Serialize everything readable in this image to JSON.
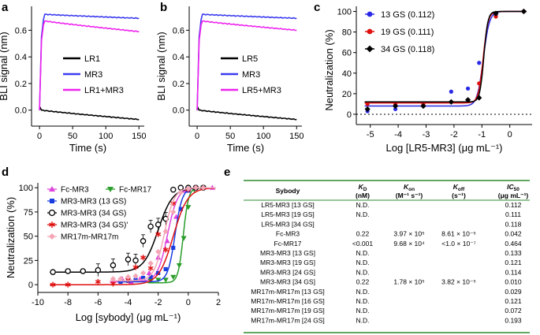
{
  "panels": {
    "a": "a",
    "b": "b",
    "c": "c",
    "d": "d",
    "e": "e"
  },
  "chart_data": [
    {
      "id": "a",
      "type": "line",
      "xlabel": "Time (s)",
      "ylabel": "BLI signal (nm)",
      "xlim": [
        -12,
        158
      ],
      "ylim": [
        -0.12,
        0.78
      ],
      "xticks": [
        "0",
        "50",
        "100",
        "150"
      ],
      "yticks": [
        "0.0",
        "0.2",
        "0.4",
        "0.6"
      ],
      "series": [
        {
          "name": "LR1",
          "color": "#000000",
          "x": [
            0,
            1,
            3,
            150
          ],
          "values": [
            0.0,
            0.02,
            0.0,
            -0.07
          ]
        },
        {
          "name": "MR3",
          "color": "#3b3bf0",
          "x": [
            0,
            3,
            6,
            8,
            150
          ],
          "values": [
            0.0,
            0.55,
            0.68,
            0.72,
            0.69
          ]
        },
        {
          "name": "LR1+MR3",
          "color": "#ee22ee",
          "x": [
            0,
            3,
            6,
            8,
            150
          ],
          "values": [
            0.0,
            0.52,
            0.64,
            0.67,
            0.59
          ]
        }
      ]
    },
    {
      "id": "b",
      "type": "line",
      "xlabel": "Time (s)",
      "ylabel": "BLI signal (nm)",
      "xlim": [
        -12,
        158
      ],
      "ylim": [
        -0.12,
        0.78
      ],
      "xticks": [
        "0",
        "50",
        "100",
        "150"
      ],
      "yticks": [
        "0.0",
        "0.2",
        "0.4",
        "0.6"
      ],
      "series": [
        {
          "name": "LR5",
          "color": "#000000",
          "x": [
            0,
            1,
            3,
            150
          ],
          "values": [
            0.0,
            0.02,
            0.0,
            -0.07
          ]
        },
        {
          "name": "MR3",
          "color": "#3b3bf0",
          "x": [
            0,
            3,
            6,
            8,
            150
          ],
          "values": [
            0.0,
            0.55,
            0.68,
            0.72,
            0.69
          ]
        },
        {
          "name": "LR5+MR3",
          "color": "#ee22ee",
          "x": [
            0,
            3,
            6,
            8,
            150
          ],
          "values": [
            0.0,
            0.52,
            0.64,
            0.67,
            0.6
          ]
        }
      ]
    },
    {
      "id": "c",
      "type": "scatter",
      "xlabel": "Log [LR5-MR3] (μg mL⁻¹)",
      "ylabel": "Neutralization (%)",
      "xlim": [
        -5.5,
        0.8
      ],
      "ylim": [
        -10,
        105
      ],
      "xticks": [
        "-5",
        "-4",
        "-3",
        "-2",
        "-1",
        "0"
      ],
      "yticks": [
        "0",
        "20",
        "40",
        "60",
        "80",
        "100"
      ],
      "baseline": 0,
      "series": [
        {
          "name": "13 GS (0.112)",
          "color": "#2a2ae6",
          "marker": "circle",
          "bottom": 8,
          "top": 100,
          "ic50_log": -0.95,
          "hill": 4,
          "x": [
            -5.1,
            -4.1,
            -3.1,
            -2.1,
            -1.5,
            -1.1,
            -0.5,
            0.5
          ],
          "values": [
            3,
            5,
            8,
            22,
            25,
            50,
            96,
            100
          ]
        },
        {
          "name": "19 GS (0.111)",
          "color": "#e01010",
          "marker": "circle",
          "bottom": 11,
          "top": 100,
          "ic50_log": -0.95,
          "hill": 5,
          "x": [
            -5.1,
            -4.1,
            -3.1,
            -2.1,
            -1.5,
            -1.1,
            -0.5,
            0.5
          ],
          "values": [
            10,
            10,
            10,
            12,
            14,
            30,
            95,
            100
          ]
        },
        {
          "name": "34 GS (0.118)",
          "color": "#000000",
          "marker": "diamond",
          "bottom": 12,
          "top": 100,
          "ic50_log": -0.93,
          "hill": 6,
          "x": [
            -5.1,
            -4.1,
            -3.1,
            -2.1,
            -1.5,
            -1.1,
            -0.5,
            0.5
          ],
          "values": [
            5,
            8,
            8,
            12,
            14,
            16,
            98,
            100
          ]
        }
      ]
    },
    {
      "id": "d",
      "type": "scatter",
      "xlabel": "Log [sybody] (μg mL⁻¹)",
      "ylabel": "Neutralization (%)",
      "xlim": [
        -10,
        2
      ],
      "ylim": [
        -8,
        105
      ],
      "xticks": [
        "-10",
        "-8",
        "-6",
        "-4",
        "-2",
        "0",
        "2"
      ],
      "yticks": [
        "0",
        "25",
        "50",
        "75",
        "100"
      ],
      "series": [
        {
          "name": "Fc-MR3",
          "color": "#dd44dd",
          "marker": "triangle",
          "bottom": 3,
          "top": 100,
          "ic50_log": -1.38,
          "hill": 1.3,
          "x": [
            -5,
            -4.4,
            -3.8,
            -3.2,
            -2.6,
            -2,
            -1.4,
            -0.8,
            -0.2,
            0.4,
            1,
            1.6
          ],
          "values": [
            4,
            6,
            3,
            6,
            12,
            28,
            45,
            70,
            97,
            99,
            100,
            100
          ]
        },
        {
          "name": "Fc-MR17",
          "color": "#2a9d2a",
          "marker": "triangle-down",
          "bottom": 2,
          "top": 100,
          "ic50_log": -0.33,
          "hill": 2.5,
          "x": [
            -2.5,
            -2,
            -1.5,
            -1,
            -0.6,
            -0.3,
            0,
            0.4,
            1
          ],
          "values": [
            4,
            5,
            5,
            8,
            20,
            48,
            80,
            98,
            100
          ]
        },
        {
          "name": "MR3-MR3 (13 GS)",
          "color": "#1a3de0",
          "marker": "square",
          "bottom": 3,
          "top": 100,
          "ic50_log": -0.88,
          "hill": 1.8,
          "x": [
            -4.5,
            -4,
            -3.5,
            -3,
            -2.5,
            -2,
            -1.5,
            -1,
            -0.5,
            0,
            0.5,
            1
          ],
          "values": [
            3,
            4,
            5,
            7,
            8,
            12,
            16,
            38,
            78,
            97,
            100,
            100
          ]
        },
        {
          "name": "MR3-MR3 (34 GS)",
          "color": "#000000",
          "marker": "open-circle",
          "bottom": 13,
          "top": 100,
          "ic50_log": -2.0,
          "hill": 0.9,
          "x": [
            -9,
            -8,
            -7,
            -6,
            -5,
            -4,
            -3.5,
            -3,
            -2.5,
            -2,
            -1.5,
            -1,
            -0.5,
            0,
            0.5,
            1
          ],
          "values": [
            13,
            14,
            14,
            15,
            20,
            26,
            25,
            45,
            60,
            62,
            68,
            98,
            100,
            100,
            100,
            100
          ]
        },
        {
          "name": "MR3-MR3 (34 GS)'",
          "color": "#e01010",
          "marker": "star",
          "bottom": 0,
          "top": 100,
          "ic50_log": -1.0,
          "hill": 0.9,
          "x": [
            -9,
            -8,
            -6,
            -5,
            -4,
            -3.5,
            -3,
            -2.5,
            -2,
            -1.5,
            -1,
            0
          ],
          "values": [
            0,
            0,
            3,
            1,
            5,
            18,
            28,
            17,
            52,
            36,
            84,
            98
          ]
        },
        {
          "name": "MR17m-MR17m",
          "color": "#f4a6b6",
          "marker": "diamond",
          "bottom": 4,
          "top": 100,
          "ic50_log": -1.6,
          "hill": 1.3,
          "x": [
            -5,
            -4.5,
            -4,
            -3.5,
            -3,
            -2.5,
            -2,
            -1.5,
            -1,
            -0.5,
            0,
            0.5,
            1
          ],
          "values": [
            6,
            6,
            8,
            9,
            12,
            22,
            34,
            55,
            75,
            95,
            99,
            100,
            100
          ]
        }
      ]
    },
    {
      "id": "e",
      "type": "table",
      "columns": [
        {
          "main": "Sybody",
          "sub": ""
        },
        {
          "main": "K",
          "subscript": "D",
          "sub": "(nM)"
        },
        {
          "main": "K",
          "subscript": "on",
          "sub": "(M⁻¹ s⁻¹)"
        },
        {
          "main": "K",
          "subscript": "off",
          "sub": "(s⁻¹)"
        },
        {
          "main": "IC",
          "subscript": "50",
          "sub": "(μg mL⁻¹)"
        }
      ],
      "rows": [
        [
          "LR5-MR3 [13 GS]",
          "N.D.",
          "",
          "",
          "0.112"
        ],
        [
          "LR5-MR3 [19 GS]",
          "N.D.",
          "",
          "",
          "0.111"
        ],
        [
          "LR5-MR3 [34 GS]",
          "",
          "",
          "",
          "0.118"
        ],
        [
          "Fc-MR3",
          "0.22",
          "3.97 × 10⁵",
          "8.61 × 10⁻⁵",
          "0.042"
        ],
        [
          "Fc-MR17",
          "<0.001",
          "9.68 × 10⁴",
          "<1.0 × 10⁻⁷",
          "0.464"
        ],
        [
          "MR3-MR3 [13 GS]",
          "N.D.",
          "",
          "",
          "0.133"
        ],
        [
          "MR3-MR3 [19 GS]",
          "N.D.",
          "",
          "",
          "0.121"
        ],
        [
          "MR3-MR3 [24 GS]",
          "N.D.",
          "",
          "",
          "0.114"
        ],
        [
          "MR3-MR3 [34 GS]",
          "0.22",
          "1.78 × 10⁵",
          "3.82 × 10⁻⁵",
          "0.010"
        ],
        [
          "MR17m-MR17m [13 GS]",
          "N.D.",
          "",
          "",
          "0.029"
        ],
        [
          "MR17m-MR17m [16 GS]",
          "N.D.",
          "",
          "",
          "0.121"
        ],
        [
          "MR17m-MR17m [19 GS]",
          "N.D.",
          "",
          "",
          "0.072"
        ],
        [
          "MR17m-MR17m [24 GS]",
          "N.D.",
          "",
          "",
          "0.193"
        ]
      ]
    }
  ]
}
